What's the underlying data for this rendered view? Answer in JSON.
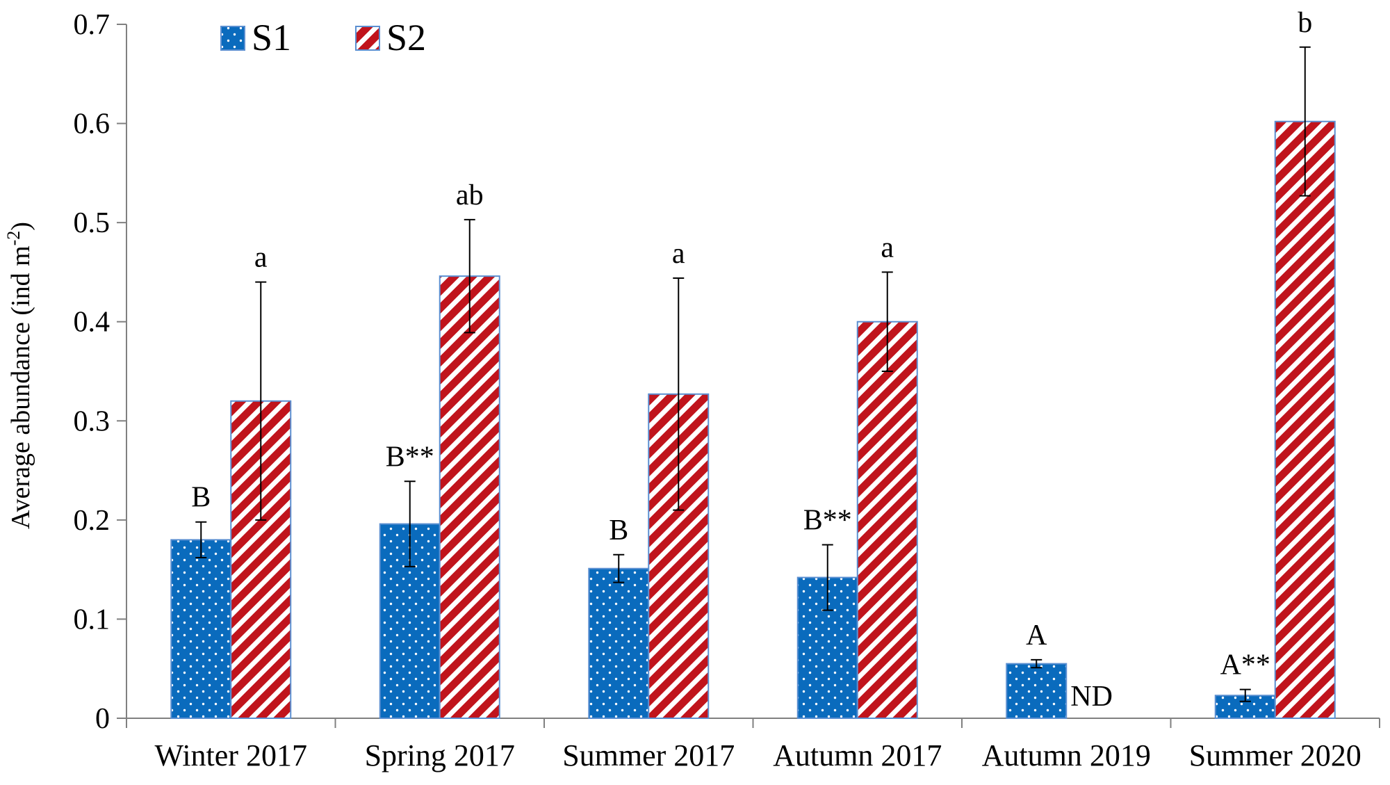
{
  "chart_data": {
    "type": "bar",
    "title": "",
    "xlabel": "",
    "ylabel": "Average abundance (ind m",
    "ylabel_sup": "-2",
    "ylabel_close": ")",
    "ylim": [
      0,
      0.7
    ],
    "yticks": [
      0,
      0.1,
      0.2,
      0.3,
      0.4,
      0.5,
      0.6,
      0.7
    ],
    "ytick_labels": [
      "0",
      "0.1",
      "0.2",
      "0.3",
      "0.4",
      "0.5",
      "0.6",
      "0.7"
    ],
    "legend_position": "top-left",
    "grid": false,
    "categories": [
      "Winter 2017",
      "Spring 2017",
      "Summer 2017",
      "Autumn 2017",
      "Autumn 2019",
      "Summer 2020"
    ],
    "series": [
      {
        "name": "S1",
        "color": "#0a6bbd",
        "pattern": "dots",
        "values": [
          0.18,
          0.196,
          0.151,
          0.142,
          0.055,
          0.023
        ],
        "errors": [
          0.018,
          0.043,
          0.014,
          0.033,
          0.004,
          0.006
        ],
        "labels": [
          "B",
          "B**",
          "B",
          "B**",
          "A",
          "A**"
        ]
      },
      {
        "name": "S2",
        "color": "#c0141c",
        "pattern": "diagonal-stripes",
        "values": [
          0.32,
          0.446,
          0.327,
          0.4,
          null,
          0.602
        ],
        "errors": [
          0.12,
          0.057,
          0.117,
          0.05,
          null,
          0.075
        ],
        "labels": [
          "a",
          "ab",
          "a",
          "a",
          "ND",
          "b"
        ]
      }
    ]
  }
}
